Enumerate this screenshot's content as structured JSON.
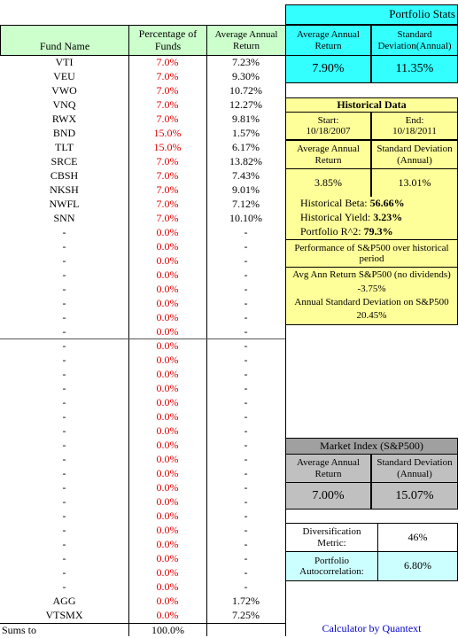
{
  "table": {
    "headers": [
      "Fund Name",
      "Percentage of Funds",
      "Average Annual Return"
    ],
    "rows": [
      [
        "VTI",
        "7.0%",
        "7.23%"
      ],
      [
        "VEU",
        "7.0%",
        "9.30%"
      ],
      [
        "VWO",
        "7.0%",
        "10.72%"
      ],
      [
        "VNQ",
        "7.0%",
        "12.27%"
      ],
      [
        "RWX",
        "7.0%",
        "9.81%"
      ],
      [
        "BND",
        "15.0%",
        "1.57%"
      ],
      [
        "TLT",
        "15.0%",
        "6.17%"
      ],
      [
        "SRCE",
        "7.0%",
        "13.82%"
      ],
      [
        "CBSH",
        "7.0%",
        "7.43%"
      ],
      [
        "NKSH",
        "7.0%",
        "9.01%"
      ],
      [
        "NWFL",
        "7.0%",
        "7.12%"
      ],
      [
        "SNN",
        "7.0%",
        "10.10%"
      ],
      [
        "-",
        "0.0%",
        "-"
      ],
      [
        "-",
        "0.0%",
        "-"
      ],
      [
        "-",
        "0.0%",
        "-"
      ],
      [
        "-",
        "0.0%",
        "-"
      ],
      [
        "-",
        "0.0%",
        "-"
      ],
      [
        "-",
        "0.0%",
        "-"
      ],
      [
        "-",
        "0.0%",
        "-"
      ],
      [
        "-",
        "0.0%",
        "-"
      ],
      [
        "-",
        "0.0%",
        "-"
      ],
      [
        "-",
        "0.0%",
        "-"
      ],
      [
        "-",
        "0.0%",
        "-"
      ],
      [
        "-",
        "0.0%",
        "-"
      ],
      [
        "-",
        "0.0%",
        "-"
      ],
      [
        "-",
        "0.0%",
        "-"
      ],
      [
        "-",
        "0.0%",
        "-"
      ],
      [
        "-",
        "0.0%",
        "-"
      ],
      [
        "-",
        "0.0%",
        "-"
      ],
      [
        "-",
        "0.0%",
        "-"
      ],
      [
        "-",
        "0.0%",
        "-"
      ],
      [
        "-",
        "0.0%",
        "-"
      ],
      [
        "-",
        "0.0%",
        "-"
      ],
      [
        "-",
        "0.0%",
        "-"
      ],
      [
        "-",
        "0.0%",
        "-"
      ],
      [
        "-",
        "0.0%",
        "-"
      ],
      [
        "-",
        "0.0%",
        "-"
      ],
      [
        "-",
        "0.0%",
        "-"
      ],
      [
        "AGG",
        "0.0%",
        "1.72%"
      ],
      [
        "VTSMX",
        "0.0%",
        "7.25%"
      ]
    ],
    "footer": [
      "Sums to",
      "100.0%"
    ]
  },
  "portfolio_stats": {
    "title": "Portfolio Stats",
    "labels": [
      "Average Annual Return",
      "Standard Deviation(Annual)"
    ],
    "values": [
      "7.90%",
      "11.35%"
    ]
  },
  "historical_data": {
    "title": "Historical Data",
    "start_label": "Start:",
    "start": "10/18/2007",
    "end_label": "End:",
    "end": "10/18/2011",
    "labels": [
      "Average Annual Return",
      "Standard Deviation (Annual)"
    ],
    "values": [
      "3.85%",
      "13.01%"
    ],
    "stats": [
      {
        "label": "Historical Beta:",
        "value": "56.66%"
      },
      {
        "label": "Historical Yield:",
        "value": "3.23%"
      },
      {
        "label": "Portfolio R^2:",
        "value": "79.3%"
      }
    ],
    "sp500_title": "Performance of S&P500 over historical period",
    "sp500_return_label": "Avg Ann Return S&P500 (no dividends)",
    "sp500_return": "-3.75%",
    "sp500_sd_label": "Annual Standard Deviation on S&P500",
    "sp500_sd": "20.45%"
  },
  "market_index": {
    "title": "Market Index (S&P500)",
    "labels": [
      "Average Annual Return",
      "Standard Deviation (Annual)"
    ],
    "values": [
      "7.00%",
      "15.07%"
    ]
  },
  "diversification": {
    "label": "Diversification Metric:",
    "value": "46%"
  },
  "autocorrelation": {
    "label": "Portfolio Autocorrelation:",
    "value": "6.80%"
  },
  "credit": "Calculator by Quantext"
}
